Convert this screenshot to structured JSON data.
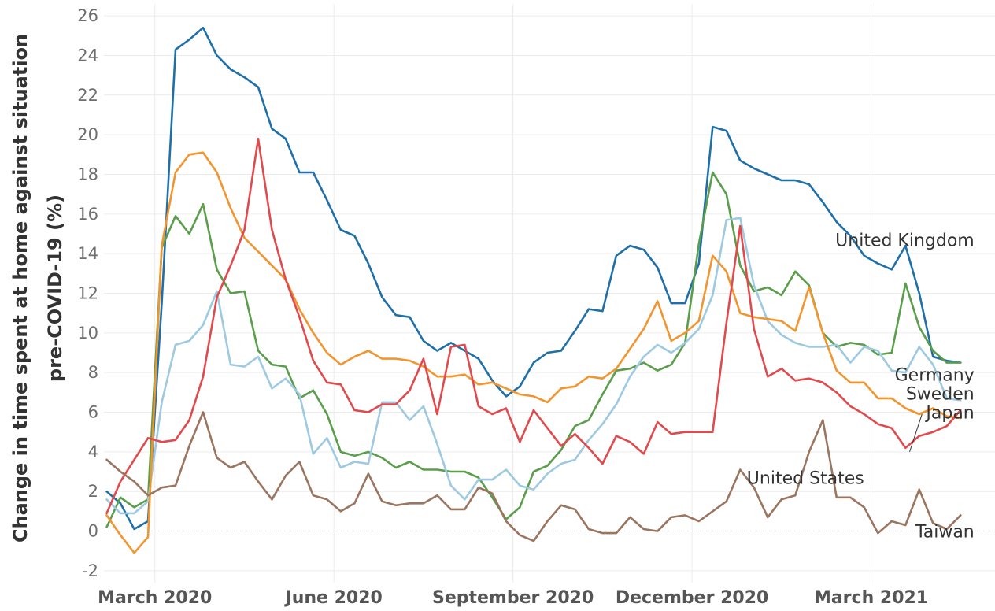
{
  "chart_data": {
    "type": "line",
    "title": "",
    "ylabel_lines": [
      "Change in time spent at home against situation",
      "pre-COVID-19 (%)"
    ],
    "xlabel": "",
    "ylim": [
      -2.6,
      26.6
    ],
    "yticks": [
      -2,
      0,
      2,
      4,
      6,
      8,
      10,
      12,
      14,
      16,
      18,
      20,
      22,
      24,
      26
    ],
    "x": [
      0,
      1,
      2,
      3,
      4,
      5,
      6,
      7,
      8,
      9,
      10,
      11,
      12,
      13,
      14,
      15,
      16,
      17,
      18,
      19,
      20,
      21,
      22,
      23,
      24,
      25,
      26,
      27,
      28,
      29,
      30,
      31,
      32,
      33,
      34,
      35,
      36,
      37,
      38,
      39,
      40,
      41,
      42,
      43,
      44,
      45,
      46,
      47,
      48,
      49,
      50,
      51,
      52,
      53,
      54,
      55,
      56,
      57,
      58,
      59,
      60,
      61,
      62
    ],
    "xlim": [
      -0.2,
      64.5
    ],
    "xticks": [
      {
        "x": 3.5,
        "label": "March 2020"
      },
      {
        "x": 16.5,
        "label": "June 2020"
      },
      {
        "x": 29.5,
        "label": "September 2020"
      },
      {
        "x": 42.5,
        "label": "December 2020"
      },
      {
        "x": 55.5,
        "label": "March 2021"
      }
    ],
    "grid": true,
    "legend": "direct-labels-right",
    "series": [
      {
        "name": "United Kingdom",
        "color": "#1f6fa8",
        "label_at": [
          63.0,
          14.7
        ],
        "values": [
          2.0,
          1.4,
          0.1,
          0.5,
          11.5,
          24.3,
          24.8,
          25.4,
          24.0,
          23.3,
          22.9,
          22.4,
          20.3,
          19.8,
          18.1,
          18.1,
          16.7,
          15.2,
          14.9,
          13.5,
          11.8,
          10.9,
          10.8,
          9.6,
          9.1,
          9.5,
          9.1,
          8.7,
          7.6,
          6.8,
          7.3,
          8.5,
          9.0,
          9.1,
          10.1,
          11.2,
          11.1,
          13.9,
          14.4,
          14.2,
          13.3,
          11.5,
          11.5,
          13.5,
          20.4,
          20.2,
          18.7,
          18.3,
          18.0,
          17.7,
          17.7,
          17.5,
          16.6,
          15.6,
          14.9,
          13.9,
          13.5,
          13.2,
          14.4,
          12.0,
          8.8,
          8.6,
          8.5
        ]
      },
      {
        "name": "Germany",
        "color": "#5a9e4b",
        "label_at": [
          63.0,
          7.9
        ],
        "values": [
          0.2,
          1.7,
          1.2,
          1.6,
          14.3,
          15.9,
          15.0,
          16.5,
          13.2,
          12.0,
          12.1,
          9.1,
          8.4,
          8.3,
          6.7,
          7.1,
          5.9,
          4.0,
          3.8,
          4.0,
          3.7,
          3.2,
          3.5,
          3.1,
          3.1,
          3.0,
          3.0,
          2.7,
          1.7,
          0.6,
          1.2,
          3.0,
          3.3,
          4.1,
          5.3,
          5.6,
          6.9,
          8.1,
          8.2,
          8.5,
          8.1,
          8.4,
          9.5,
          14.5,
          18.1,
          17.0,
          13.4,
          12.1,
          12.3,
          11.9,
          13.1,
          12.4,
          10.0,
          9.3,
          9.5,
          9.4,
          8.9,
          9.0,
          12.5,
          10.3,
          9.1,
          8.5,
          8.5
        ]
      },
      {
        "name": "Sweden",
        "color": "#9ecae1",
        "label_at": [
          63.0,
          6.95
        ],
        "values": [
          1.6,
          0.9,
          0.9,
          1.5,
          6.5,
          9.4,
          9.6,
          10.4,
          12.1,
          8.4,
          8.3,
          8.8,
          7.2,
          7.7,
          6.9,
          3.9,
          4.7,
          3.2,
          3.5,
          3.4,
          6.5,
          6.5,
          5.6,
          6.3,
          4.4,
          2.3,
          1.6,
          2.6,
          2.6,
          3.1,
          2.3,
          2.1,
          2.9,
          3.4,
          3.6,
          4.6,
          5.4,
          6.4,
          7.8,
          8.8,
          9.4,
          9.0,
          9.5,
          10.2,
          11.9,
          15.7,
          15.8,
          12.4,
          10.6,
          9.9,
          9.5,
          9.3,
          9.3,
          9.4,
          8.5,
          9.3,
          9.1,
          8.1,
          8.0,
          9.3,
          8.4,
          6.7,
          6.6
        ]
      },
      {
        "name": "Japan",
        "color": "#f2952f",
        "label_at": [
          63.0,
          6.0
        ],
        "values": [
          0.8,
          -0.2,
          -1.1,
          -0.3,
          14.4,
          18.1,
          19.0,
          19.1,
          18.1,
          16.3,
          14.8,
          14.1,
          13.4,
          12.7,
          11.2,
          10.0,
          9.0,
          8.4,
          8.8,
          9.1,
          8.7,
          8.7,
          8.6,
          8.3,
          7.8,
          7.8,
          7.9,
          7.4,
          7.5,
          7.2,
          6.9,
          6.8,
          6.5,
          7.2,
          7.3,
          7.8,
          7.7,
          8.2,
          9.2,
          10.2,
          11.6,
          9.6,
          10.0,
          10.6,
          13.9,
          13.1,
          11.0,
          10.8,
          10.7,
          10.6,
          10.1,
          12.3,
          10.0,
          8.1,
          7.5,
          7.5,
          6.7,
          6.7,
          6.2,
          5.9,
          6.2,
          5.8,
          5.7
        ]
      },
      {
        "name": "United States",
        "color": "#e04a4d",
        "label_at": [
          55.0,
          2.7
        ],
        "values": [
          0.9,
          2.5,
          3.6,
          4.7,
          4.5,
          4.6,
          5.6,
          7.8,
          11.8,
          13.4,
          15.2,
          19.8,
          15.2,
          12.7,
          10.8,
          8.6,
          7.5,
          7.4,
          6.1,
          6.0,
          6.4,
          6.4,
          7.1,
          8.7,
          5.9,
          9.3,
          9.4,
          6.3,
          5.9,
          6.2,
          4.5,
          6.1,
          5.2,
          4.3,
          4.9,
          4.2,
          3.4,
          4.8,
          4.5,
          3.9,
          5.5,
          4.9,
          5.0,
          5.0,
          5.0,
          10.5,
          15.4,
          10.2,
          7.8,
          8.2,
          7.6,
          7.7,
          7.5,
          7.0,
          6.3,
          5.9,
          5.4,
          5.2,
          4.2,
          4.8,
          5.0,
          5.3,
          6.1
        ]
      },
      {
        "name": "Taiwan",
        "color": "#9a7560",
        "label_at": [
          63.0,
          0.0
        ],
        "values": [
          3.6,
          3.0,
          2.5,
          1.8,
          2.2,
          2.3,
          4.3,
          6.0,
          3.7,
          3.2,
          3.5,
          2.5,
          1.6,
          2.8,
          3.5,
          1.8,
          1.6,
          1.0,
          1.4,
          2.9,
          1.5,
          1.3,
          1.4,
          1.4,
          1.8,
          1.1,
          1.1,
          2.2,
          1.9,
          0.5,
          -0.2,
          -0.5,
          0.5,
          1.3,
          1.1,
          0.1,
          -0.1,
          -0.1,
          0.7,
          0.1,
          0.0,
          0.7,
          0.8,
          0.5,
          1.0,
          1.5,
          3.1,
          2.2,
          0.7,
          1.6,
          1.8,
          4.0,
          5.6,
          1.7,
          1.7,
          1.2,
          -0.1,
          0.5,
          0.3,
          2.1,
          0.4,
          0.1,
          0.8
        ]
      }
    ]
  }
}
